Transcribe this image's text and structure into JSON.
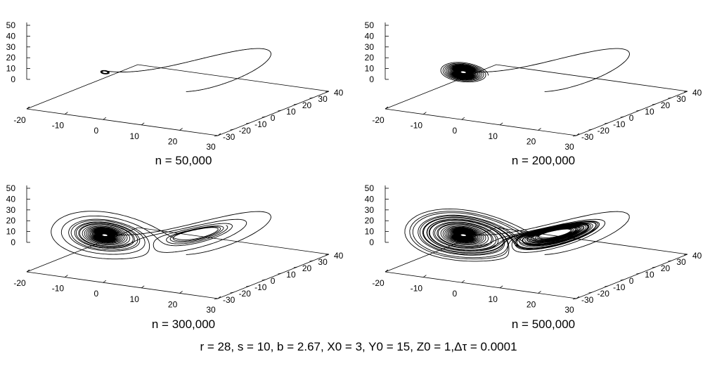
{
  "footer": "r = 28, s = 10, b = 2.67, X0 = 3, Y0 = 15, Z0 = 1,Δτ = 0.0001",
  "chart_data": [
    {
      "type": "line3d",
      "caption": "n = 50,000",
      "xlim": [
        -20,
        30
      ],
      "ylim": [
        -30,
        40
      ],
      "zlim": [
        0,
        50
      ],
      "xticks": [
        "-20",
        "-10",
        "0",
        "10",
        "20",
        "30"
      ],
      "yticks": [
        "-30",
        "-20",
        "-10",
        "0",
        "10",
        "20",
        "30",
        "40"
      ],
      "zticks": [
        "0",
        "10",
        "20",
        "30",
        "40",
        "50"
      ],
      "system": {
        "r": 28,
        "s": 10,
        "b": 2.67,
        "x0": 3,
        "y0": 15,
        "z0": 1,
        "dt": 0.0001
      },
      "steps": 50000
    },
    {
      "type": "line3d",
      "caption": "n = 200,000",
      "xlim": [
        -20,
        30
      ],
      "ylim": [
        -30,
        40
      ],
      "zlim": [
        0,
        50
      ],
      "xticks": [
        "-20",
        "-10",
        "0",
        "10",
        "20",
        "30"
      ],
      "yticks": [
        "-30",
        "-20",
        "-10",
        "0",
        "10",
        "20",
        "30",
        "40"
      ],
      "zticks": [
        "0",
        "10",
        "20",
        "30",
        "40",
        "50"
      ],
      "system": {
        "r": 28,
        "s": 10,
        "b": 2.67,
        "x0": 3,
        "y0": 15,
        "z0": 1,
        "dt": 0.0001
      },
      "steps": 200000
    },
    {
      "type": "line3d",
      "caption": "n = 300,000",
      "xlim": [
        -20,
        30
      ],
      "ylim": [
        -30,
        40
      ],
      "zlim": [
        0,
        50
      ],
      "xticks": [
        "-20",
        "-10",
        "0",
        "10",
        "20",
        "30"
      ],
      "yticks": [
        "-30",
        "-20",
        "-10",
        "0",
        "10",
        "20",
        "30",
        "40"
      ],
      "zticks": [
        "0",
        "10",
        "20",
        "30",
        "40",
        "50"
      ],
      "system": {
        "r": 28,
        "s": 10,
        "b": 2.67,
        "x0": 3,
        "y0": 15,
        "z0": 1,
        "dt": 0.0001
      },
      "steps": 300000
    },
    {
      "type": "line3d",
      "caption": "n = 500,000",
      "xlim": [
        -20,
        30
      ],
      "ylim": [
        -30,
        40
      ],
      "zlim": [
        0,
        50
      ],
      "xticks": [
        "-20",
        "-10",
        "0",
        "10",
        "20",
        "30"
      ],
      "yticks": [
        "-30",
        "-20",
        "-10",
        "0",
        "10",
        "20",
        "30",
        "40"
      ],
      "zticks": [
        "0",
        "10",
        "20",
        "30",
        "40",
        "50"
      ],
      "system": {
        "r": 28,
        "s": 10,
        "b": 2.67,
        "x0": 3,
        "y0": 15,
        "z0": 1,
        "dt": 0.0001
      },
      "steps": 500000
    }
  ]
}
